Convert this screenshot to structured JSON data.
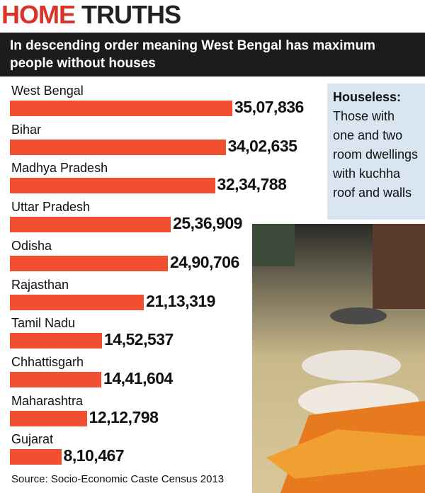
{
  "chart_data": {
    "type": "bar",
    "orientation": "horizontal",
    "title": "HOME TRUTHS",
    "subtitle": "In descending order meaning West Bengal has maximum people without houses",
    "categories": [
      "West Bengal",
      "Bihar",
      "Madhya Pradesh",
      "Uttar Pradesh",
      "Odisha",
      "Rajasthan",
      "Tamil Nadu",
      "Chhattisgarh",
      "Maharashtra",
      "Gujarat"
    ],
    "values": [
      3507836,
      3402635,
      3234788,
      2536909,
      2490706,
      2113319,
      1452537,
      1441604,
      1212798,
      810467
    ],
    "value_labels": [
      "35,07,836",
      "34,02,635",
      "32,34,788",
      "25,36,909",
      "24,90,706",
      "21,13,319",
      "14,52,537",
      "14,41,604",
      "12,12,798",
      "8,10,467"
    ],
    "color": "#f0502f",
    "note_title": "Houseless:",
    "note_text": "Those with one and two room dwellings with kuchha roof and walls",
    "source": "Source: Socio-Economic Caste Census 2013"
  }
}
